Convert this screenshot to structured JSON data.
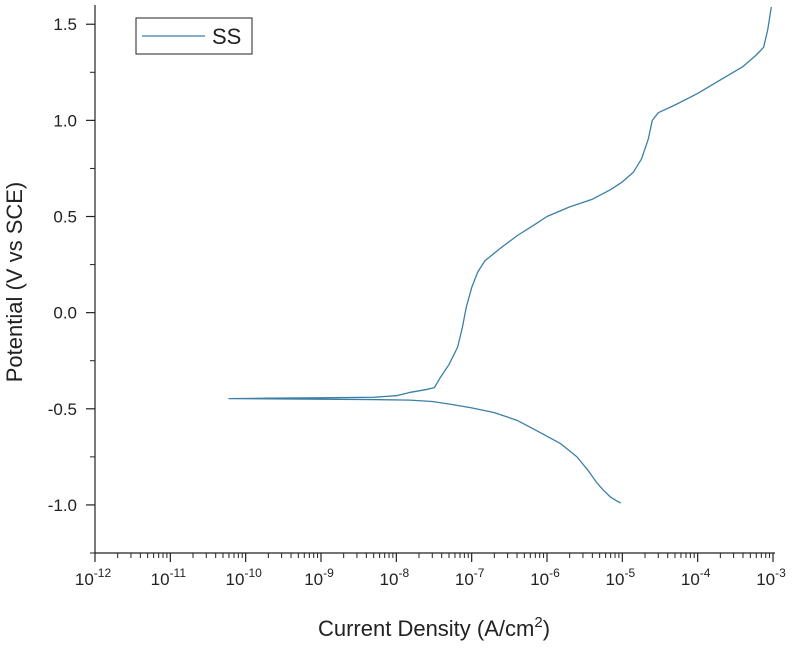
{
  "chart_data": {
    "type": "line",
    "xlabel": "Current Density (A/cm",
    "xlabel_sup": "2",
    "xlabel_end": ")",
    "ylabel": "Potential (V vs SCE)",
    "x_scale": "log",
    "xlim": [
      1e-12,
      0.001
    ],
    "ylim": [
      -1.25,
      1.6
    ],
    "x_ticks": [
      {
        "exp": "-12",
        "value": 1e-12
      },
      {
        "exp": "-11",
        "value": 1e-11
      },
      {
        "exp": "-10",
        "value": 1e-10
      },
      {
        "exp": "-9",
        "value": 1e-09
      },
      {
        "exp": "-8",
        "value": 1e-08
      },
      {
        "exp": "-7",
        "value": 1e-07
      },
      {
        "exp": "-6",
        "value": 1e-06
      },
      {
        "exp": "-5",
        "value": 1e-05
      },
      {
        "exp": "-4",
        "value": 0.0001
      },
      {
        "exp": "-3",
        "value": 0.001
      }
    ],
    "x_tick_base": "10",
    "y_ticks": [
      {
        "label": "-1.0",
        "value": -1.0
      },
      {
        "label": "-0.5",
        "value": -0.5
      },
      {
        "label": "0.0",
        "value": 0.0
      },
      {
        "label": "0.5",
        "value": 0.5
      },
      {
        "label": "1.0",
        "value": 1.0
      },
      {
        "label": "1.5",
        "value": 1.5
      }
    ],
    "legend_position": "top-left",
    "grid": false,
    "series": [
      {
        "name": "SS",
        "color": "#3b7fa6",
        "points": [
          [
            9.5e-06,
            -0.99
          ],
          [
            8.5e-06,
            -0.98
          ],
          [
            7e-06,
            -0.96
          ],
          [
            5.5e-06,
            -0.92
          ],
          [
            4.5e-06,
            -0.88
          ],
          [
            3.5e-06,
            -0.82
          ],
          [
            2.5e-06,
            -0.75
          ],
          [
            1.5e-06,
            -0.68
          ],
          [
            7e-07,
            -0.61
          ],
          [
            4e-07,
            -0.56
          ],
          [
            2e-07,
            -0.52
          ],
          [
            1e-07,
            -0.495
          ],
          [
            5e-08,
            -0.475
          ],
          [
            3e-08,
            -0.462
          ],
          [
            1.5e-08,
            -0.455
          ],
          [
            5e-09,
            -0.452
          ],
          [
            1e-09,
            -0.45
          ],
          [
            2e-10,
            -0.448
          ],
          [
            6e-11,
            -0.447
          ],
          [
            2e-10,
            -0.445
          ],
          [
            1e-09,
            -0.443
          ],
          [
            5e-09,
            -0.44
          ],
          [
            1e-08,
            -0.432
          ],
          [
            1.5e-08,
            -0.415
          ],
          [
            2.5e-08,
            -0.4
          ],
          [
            3.2e-08,
            -0.39
          ],
          [
            3.8e-08,
            -0.34
          ],
          [
            5e-08,
            -0.27
          ],
          [
            6.5e-08,
            -0.18
          ],
          [
            7.5e-08,
            -0.08
          ],
          [
            8.5e-08,
            0.03
          ],
          [
            1e-07,
            0.13
          ],
          [
            1.2e-07,
            0.21
          ],
          [
            1.5e-07,
            0.27
          ],
          [
            2.5e-07,
            0.34
          ],
          [
            4e-07,
            0.4
          ],
          [
            7e-07,
            0.46
          ],
          [
            1e-06,
            0.5
          ],
          [
            2e-06,
            0.55
          ],
          [
            4e-06,
            0.59
          ],
          [
            7e-06,
            0.64
          ],
          [
            1e-05,
            0.68
          ],
          [
            1.4e-05,
            0.73
          ],
          [
            1.8e-05,
            0.8
          ],
          [
            2.2e-05,
            0.9
          ],
          [
            2.5e-05,
            1.0
          ],
          [
            3e-05,
            1.04
          ],
          [
            5e-05,
            1.08
          ],
          [
            0.0001,
            1.14
          ],
          [
            0.0002,
            1.21
          ],
          [
            0.0004,
            1.28
          ],
          [
            0.0006,
            1.34
          ],
          [
            0.00075,
            1.38
          ],
          [
            0.00085,
            1.47
          ],
          [
            0.00095,
            1.59
          ]
        ]
      }
    ]
  }
}
